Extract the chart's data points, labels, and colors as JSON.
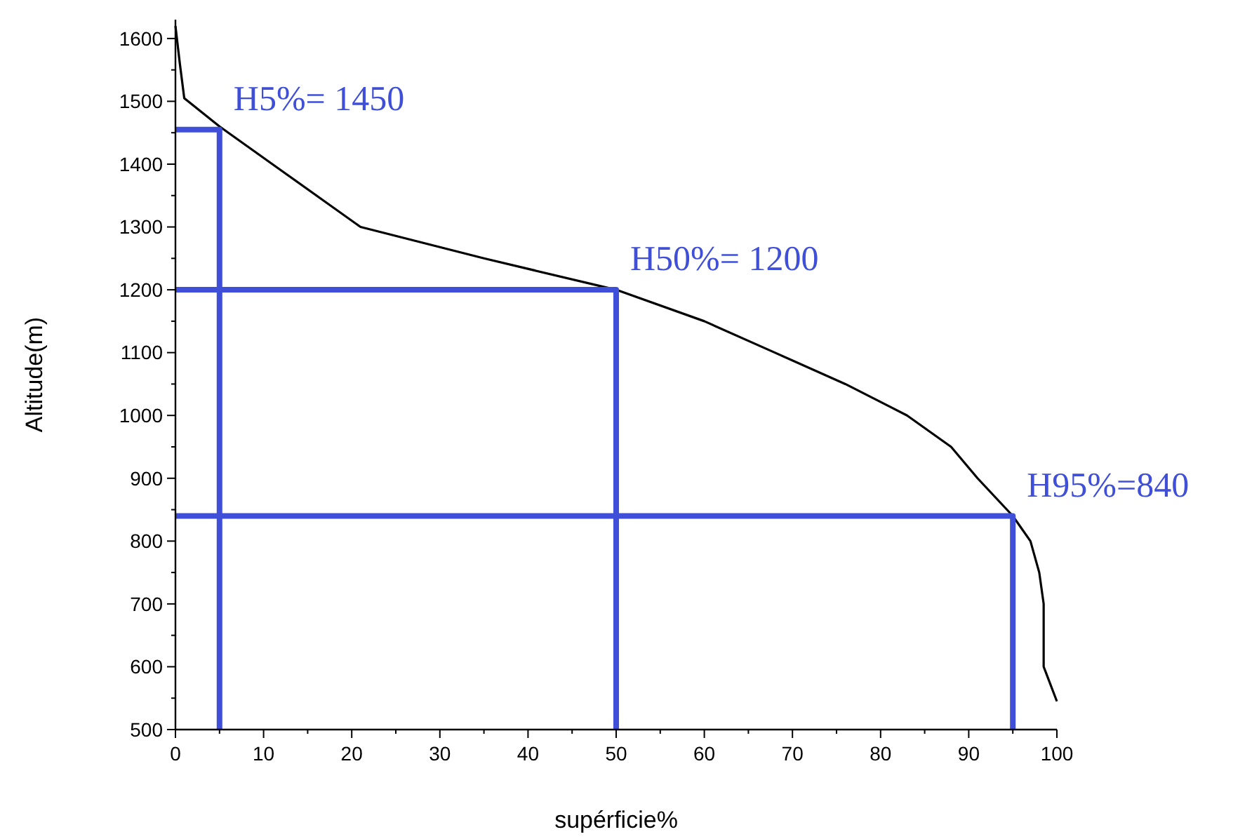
{
  "chart_data": {
    "type": "line",
    "xlabel": "supérficie%",
    "ylabel": "Altitude(m)",
    "xlim": [
      0,
      100
    ],
    "ylim": [
      500,
      1630
    ],
    "xticks": [
      0,
      {
        "value": 5,
        "label": null
      },
      10,
      {
        "value": 15,
        "label": null
      },
      20,
      {
        "value": 25,
        "label": null
      },
      30,
      {
        "value": 35,
        "label": null
      },
      40,
      {
        "value": 45,
        "label": null
      },
      50,
      {
        "value": 55,
        "label": null
      },
      60,
      {
        "value": 65,
        "label": null
      },
      70,
      {
        "value": 75,
        "label": null
      },
      80,
      {
        "value": 85,
        "label": null
      },
      90,
      {
        "value": 95,
        "label": null
      },
      100
    ],
    "yticks": [
      500,
      {
        "value": 550,
        "label": null
      },
      600,
      {
        "value": 650,
        "label": null
      },
      700,
      {
        "value": 750,
        "label": null
      },
      800,
      {
        "value": 850,
        "label": null
      },
      900,
      {
        "value": 950,
        "label": null
      },
      1000,
      {
        "value": 1050,
        "label": null
      },
      1100,
      {
        "value": 1150,
        "label": null
      },
      1200,
      {
        "value": 1250,
        "label": null
      },
      1300,
      {
        "value": 1350,
        "label": null
      },
      1400,
      {
        "value": 1450,
        "label": null
      },
      1500,
      {
        "value": 1550,
        "label": null
      },
      1600
    ],
    "grid": false,
    "marker": "none",
    "line_style": "solid",
    "series": [
      {
        "color": "#000000",
        "x": [
          0,
          0.5,
          1,
          5,
          12,
          21,
          35,
          50,
          60,
          68,
          76,
          83,
          88,
          91,
          95,
          97,
          98,
          98.5,
          98.5,
          100
        ],
        "values": [
          1620,
          1560,
          1505,
          1460,
          1390,
          1300,
          1250,
          1200,
          1150,
          1100,
          1050,
          1000,
          950,
          900,
          840,
          800,
          750,
          700,
          600,
          545
        ]
      },
      {
        "color": "#3f4fd8",
        "x": [
          0,
          5,
          5
        ],
        "values": [
          1455,
          1455,
          500
        ]
      },
      {
        "color": "#3f4fd8",
        "x": [
          0,
          50,
          50
        ],
        "values": [
          1200,
          1200,
          500
        ]
      },
      {
        "color": "#3f4fd8",
        "x": [
          0,
          95,
          95
        ],
        "values": [
          840,
          840,
          500
        ]
      }
    ],
    "annotations": [
      {
        "text": "H5%= 1450",
        "x": 5,
        "y": 1455
      },
      {
        "text": "H50%= 1200",
        "x": 50,
        "y": 1200
      },
      {
        "text": "H95%=840",
        "x": 95,
        "y": 840
      }
    ]
  }
}
